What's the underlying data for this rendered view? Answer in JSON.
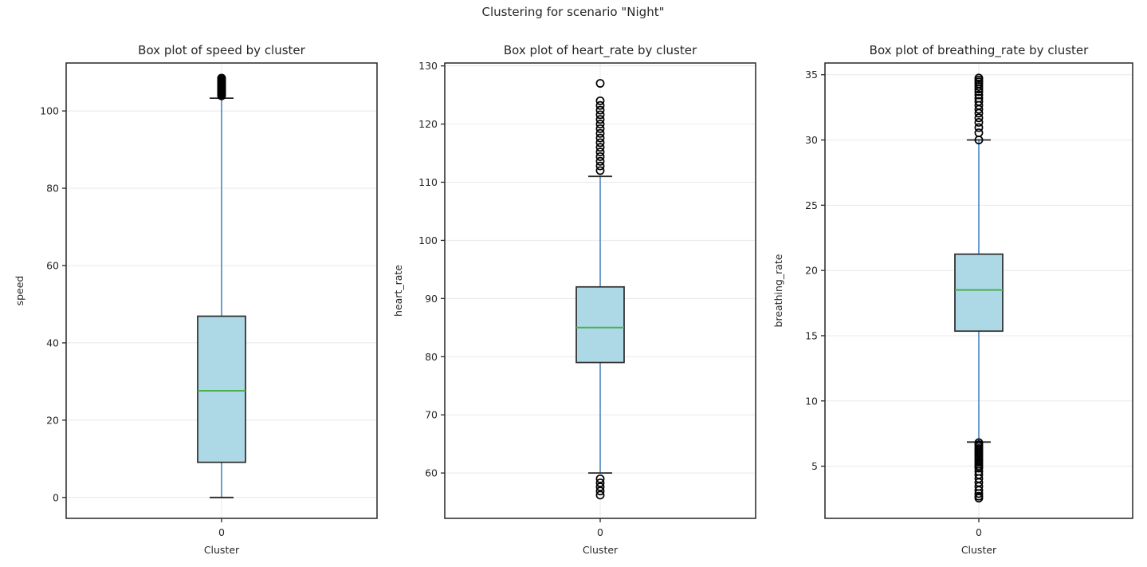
{
  "figure": {
    "suptitle": "Clustering for scenario \"Night\"",
    "background": "#ffffff"
  },
  "colors": {
    "box_fill": "#add8e6",
    "box_edge": "#2b2b2b",
    "median": "#4caf50",
    "whisker": "#3d7fc1",
    "cap": "#262626",
    "outlier_edge": "#000000",
    "grid": "#e8e8e8",
    "spine": "#262626",
    "text": "#262626"
  },
  "chart_data": [
    {
      "type": "boxplot",
      "title": "Box plot of speed by cluster",
      "xlabel": "Cluster",
      "ylabel": "speed",
      "categories": [
        "0"
      ],
      "yticks": [
        0,
        20,
        40,
        60,
        80,
        100
      ],
      "ylim": [
        -5.4,
        112.4
      ],
      "grid": true,
      "series": [
        {
          "category": "0",
          "q1": 9.1,
          "median": 27.6,
          "q3": 46.9,
          "whisker_low": 0.0,
          "whisker_high": 103.3,
          "outliers_low": [],
          "outliers_high": [
            103.9,
            104.2,
            104.5,
            104.8,
            105.0,
            105.3,
            105.6,
            105.9,
            106.1,
            106.4,
            106.7,
            106.9,
            107.2,
            107.5,
            107.7,
            108.0,
            108.3,
            108.5
          ]
        }
      ]
    },
    {
      "type": "boxplot",
      "title": "Box plot of heart_rate by cluster",
      "xlabel": "Cluster",
      "ylabel": "heart_rate",
      "categories": [
        "0"
      ],
      "yticks": [
        60,
        70,
        80,
        90,
        100,
        110,
        120,
        130
      ],
      "ylim": [
        52.2,
        130.5
      ],
      "grid": true,
      "series": [
        {
          "category": "0",
          "q1": 79.0,
          "median": 85.0,
          "q3": 92.0,
          "whisker_low": 60.0,
          "whisker_high": 111.0,
          "outliers_low": [
            59.0,
            58.3,
            57.6,
            56.9,
            56.2
          ],
          "outliers_high": [
            112.0,
            112.8,
            113.6,
            114.4,
            115.2,
            116.0,
            116.8,
            117.6,
            118.4,
            119.2,
            120.0,
            120.8,
            121.6,
            122.4,
            123.2,
            124.0,
            127.0
          ]
        }
      ]
    },
    {
      "type": "boxplot",
      "title": "Box plot of breathing_rate by cluster",
      "xlabel": "Cluster",
      "ylabel": "breathing_rate",
      "categories": [
        "0"
      ],
      "yticks": [
        5,
        10,
        15,
        20,
        25,
        30,
        35
      ],
      "ylim": [
        1.0,
        35.9
      ],
      "grid": true,
      "series": [
        {
          "category": "0",
          "q1": 15.35,
          "median": 18.5,
          "q3": 21.25,
          "whisker_low": 6.85,
          "whisker_high": 30.0,
          "outliers_low": [
            6.8,
            6.65,
            6.5,
            6.35,
            6.2,
            6.05,
            5.9,
            5.75,
            5.6,
            5.45,
            5.3,
            5.15,
            5.0,
            4.85,
            4.6,
            4.35,
            4.05,
            3.75,
            3.45,
            3.15,
            2.9,
            2.7,
            2.55
          ],
          "outliers_high": [
            30.0,
            30.55,
            30.95,
            31.35,
            31.7,
            32.05,
            32.35,
            32.65,
            32.95,
            33.2,
            33.45,
            33.7,
            33.9,
            34.1,
            34.3,
            34.45,
            34.6,
            34.75
          ]
        }
      ]
    }
  ]
}
